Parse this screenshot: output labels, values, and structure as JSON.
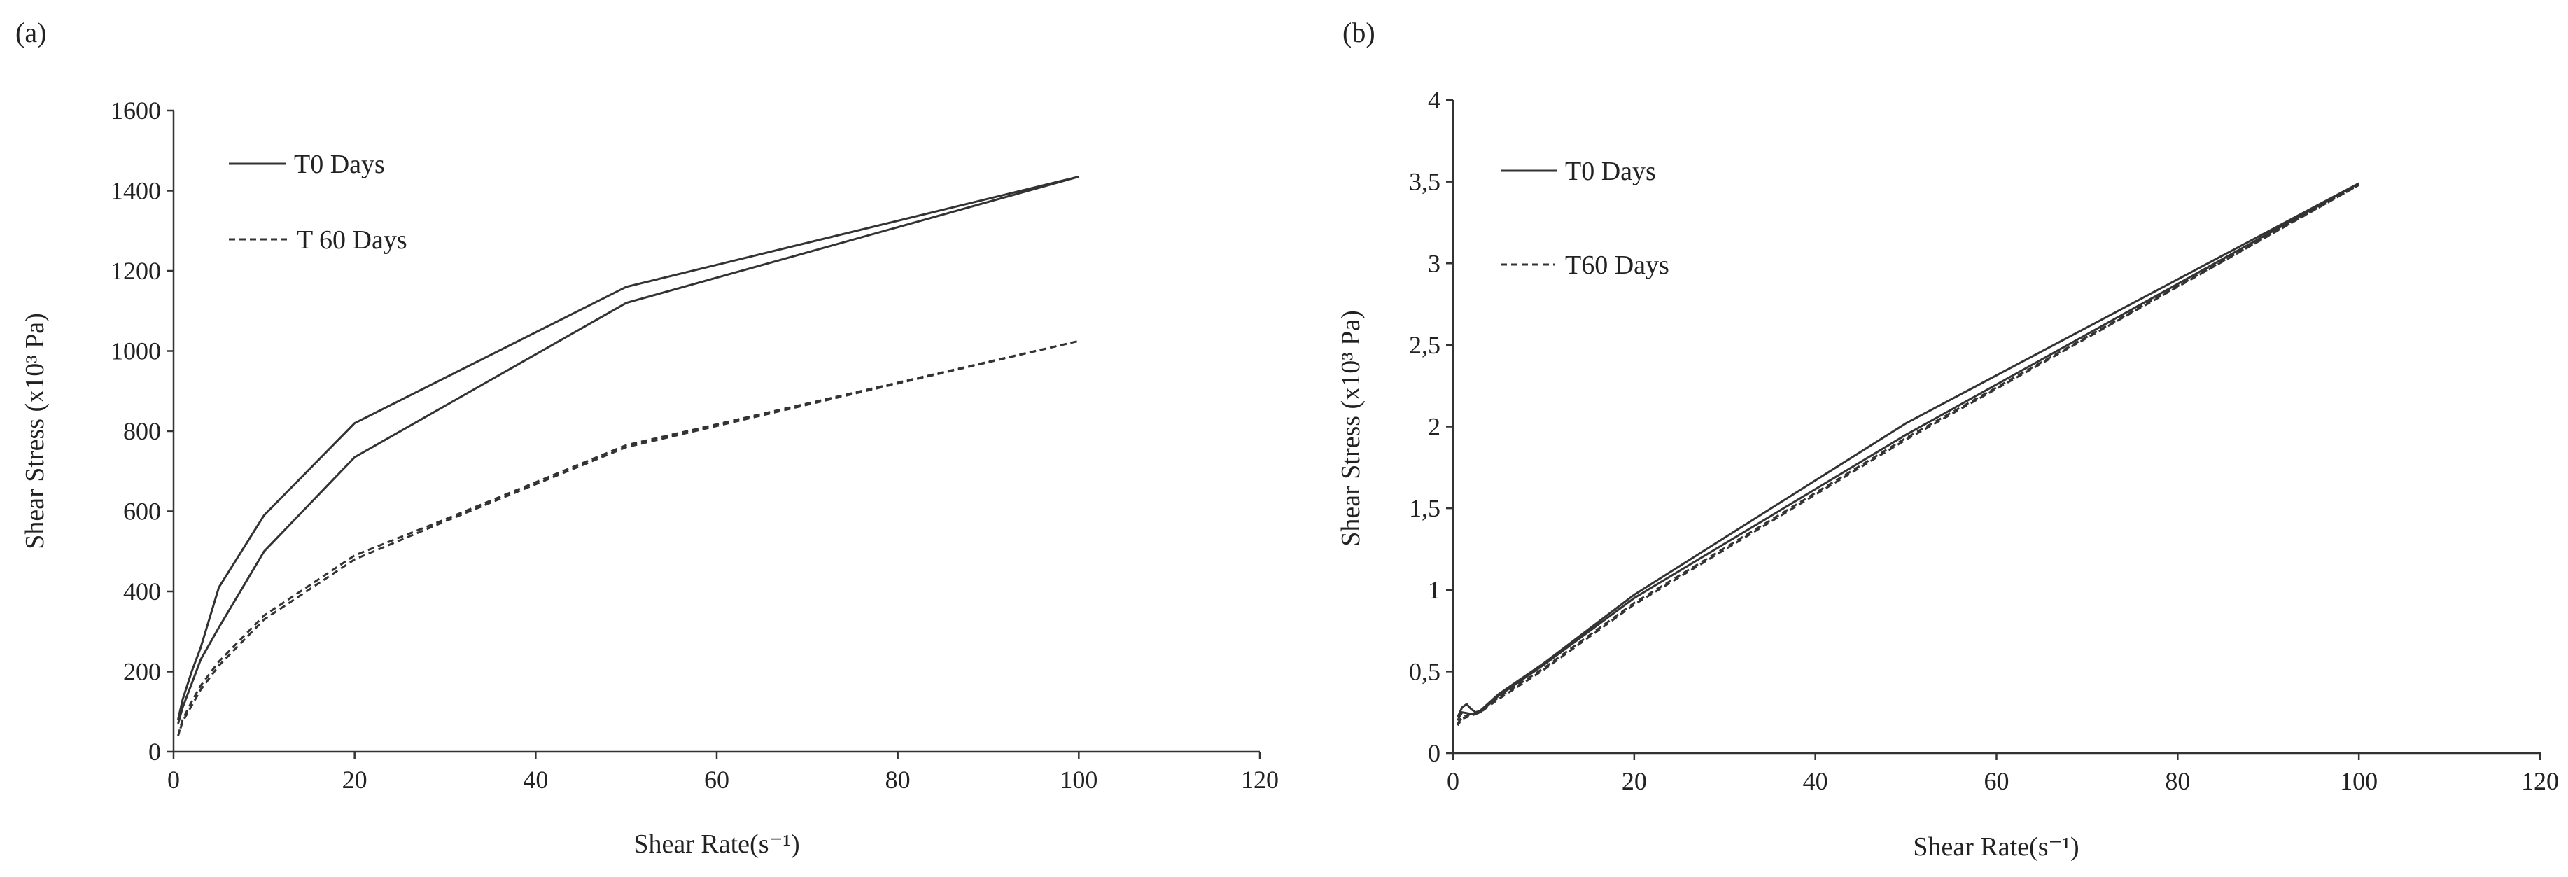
{
  "chart_data": [
    {
      "panel_label": "(a)",
      "type": "line",
      "xlabel": "Shear Rate(s⁻¹)",
      "ylabel": "Shear Stress (x10³ Pa)",
      "xlim": [
        0,
        120
      ],
      "ylim": [
        0,
        1600
      ],
      "xticks": [
        0,
        20,
        40,
        60,
        80,
        100,
        120
      ],
      "yticks": [
        0,
        200,
        400,
        600,
        800,
        1000,
        1200,
        1400,
        1600
      ],
      "xtick_labels": [
        "0",
        "20",
        "40",
        "60",
        "80",
        "100",
        "120"
      ],
      "ytick_labels": [
        "0",
        "200",
        "400",
        "600",
        "800",
        "1000",
        "1200",
        "1400",
        "1600"
      ],
      "grid": false,
      "legend_position": "top-left",
      "series": [
        {
          "name": "T0 Days",
          "style": "solid",
          "x": [
            0.5,
            1,
            2,
            3,
            5,
            10,
            20,
            50,
            100,
            50,
            20,
            10,
            5,
            3,
            2,
            1,
            0.5
          ],
          "y": [
            80,
            130,
            200,
            260,
            410,
            590,
            820,
            1160,
            1435,
            1120,
            735,
            500,
            310,
            230,
            170,
            110,
            70
          ]
        },
        {
          "name": "T 60 Days",
          "style": "dashed",
          "x": [
            0.5,
            1,
            2,
            3,
            5,
            10,
            20,
            30,
            50,
            100,
            50,
            30,
            20,
            10,
            5,
            3,
            2,
            1,
            0.5
          ],
          "y": [
            40,
            80,
            125,
            165,
            225,
            340,
            490,
            580,
            765,
            1025,
            760,
            575,
            480,
            330,
            215,
            155,
            115,
            75,
            40
          ]
        }
      ]
    },
    {
      "panel_label": "(b)",
      "type": "line",
      "xlabel": "Shear Rate(s⁻¹)",
      "ylabel": "Shear Stress (x10³ Pa)",
      "xlim": [
        0,
        120
      ],
      "ylim": [
        0,
        4
      ],
      "xticks": [
        0,
        20,
        40,
        60,
        80,
        100,
        120
      ],
      "yticks": [
        0,
        0.5,
        1,
        1.5,
        2,
        2.5,
        3,
        3.5,
        4
      ],
      "xtick_labels": [
        "0",
        "20",
        "40",
        "60",
        "80",
        "100",
        "120"
      ],
      "ytick_labels": [
        "0",
        "0,5",
        "1",
        "1,5",
        "2",
        "2,5",
        "3",
        "3,5",
        "4"
      ],
      "grid": false,
      "legend_position": "top-left",
      "series": [
        {
          "name": "T0 Days",
          "style": "solid",
          "x": [
            0.5,
            1,
            1.5,
            2,
            2.5,
            3,
            5,
            10,
            20,
            50,
            100,
            50,
            20,
            10,
            5,
            3,
            2,
            1,
            0.5
          ],
          "y": [
            0.22,
            0.28,
            0.3,
            0.27,
            0.25,
            0.26,
            0.36,
            0.55,
            0.97,
            2.02,
            3.49,
            1.95,
            0.95,
            0.54,
            0.35,
            0.25,
            0.24,
            0.25,
            0.2
          ]
        },
        {
          "name": "T60 Days",
          "style": "dashed",
          "x": [
            0.5,
            1,
            2,
            3,
            5,
            10,
            20,
            50,
            100,
            50,
            20,
            10,
            5,
            3,
            2,
            1,
            0.5
          ],
          "y": [
            0.18,
            0.22,
            0.24,
            0.26,
            0.34,
            0.52,
            0.92,
            1.93,
            3.48,
            1.92,
            0.91,
            0.51,
            0.33,
            0.25,
            0.23,
            0.21,
            0.17
          ]
        }
      ]
    }
  ]
}
